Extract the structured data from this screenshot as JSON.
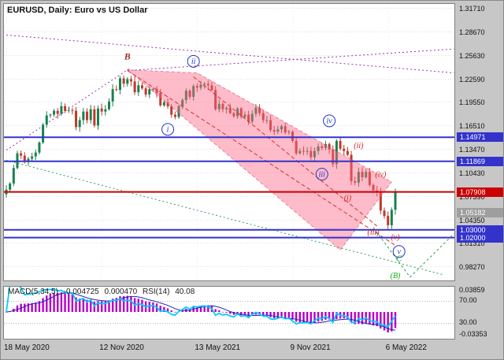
{
  "header": {
    "symbol_line": "EURUSD, Daily: Euro vs US Dollar"
  },
  "chart_data": {
    "type": "candlestick",
    "symbol": "EURUSD",
    "timeframe": "Daily",
    "description": "Euro vs US Dollar",
    "price_axis": {
      "max": 1.3222,
      "min": 0.9646,
      "ticks": [
        {
          "label": "1.31710",
          "value": 1.3171
        },
        {
          "label": "1.28670",
          "value": 1.2867
        },
        {
          "label": "1.25630",
          "value": 1.2563
        },
        {
          "label": "1.22590",
          "value": 1.2259
        },
        {
          "label": "1.19550",
          "value": 1.1955
        },
        {
          "label": "1.16510",
          "value": 1.1651
        },
        {
          "label": "1.13470",
          "value": 1.1347
        },
        {
          "label": "1.10430",
          "value": 1.1043
        },
        {
          "label": "1.07390",
          "value": 1.0739
        },
        {
          "label": "1.04350",
          "value": 1.0435
        },
        {
          "label": "1.01310",
          "value": 1.0131
        },
        {
          "label": "0.98270",
          "value": 0.9827
        }
      ]
    },
    "time_axis": {
      "labels": [
        "18 May 2020",
        "12 Nov 2020",
        "13 May 2021",
        "9 Nov 2021",
        "6 May 2022"
      ],
      "indices": [
        0,
        26,
        52,
        78,
        104
      ]
    },
    "candles": {
      "first_open": 1.076,
      "closes": [
        1.082,
        1.09,
        1.11,
        1.129,
        1.126,
        1.118,
        1.122,
        1.125,
        1.13,
        1.143,
        1.166,
        1.178,
        1.179,
        1.184,
        1.18,
        1.19,
        1.184,
        1.185,
        1.184,
        1.163,
        1.172,
        1.183,
        1.172,
        1.186,
        1.165,
        1.187,
        1.183,
        1.186,
        1.196,
        1.212,
        1.211,
        1.226,
        1.219,
        1.225,
        1.222,
        1.208,
        1.217,
        1.213,
        1.205,
        1.212,
        1.212,
        1.207,
        1.191,
        1.195,
        1.19,
        1.179,
        1.176,
        1.19,
        1.198,
        1.21,
        1.202,
        1.216,
        1.214,
        1.218,
        1.219,
        1.217,
        1.211,
        1.186,
        1.193,
        1.186,
        1.188,
        1.181,
        1.177,
        1.187,
        1.176,
        1.179,
        1.17,
        1.18,
        1.188,
        1.181,
        1.172,
        1.172,
        1.159,
        1.157,
        1.16,
        1.164,
        1.156,
        1.157,
        1.145,
        1.129,
        1.132,
        1.131,
        1.132,
        1.124,
        1.132,
        1.138,
        1.136,
        1.141,
        1.134,
        1.115,
        1.145,
        1.135,
        1.132,
        1.127,
        1.093,
        1.091,
        1.105,
        1.098,
        1.105,
        1.088,
        1.081,
        1.079,
        1.055,
        1.048,
        1.036,
        1.056,
        1.079
      ]
    },
    "levels": [
      {
        "value": 1.14971,
        "label": "1.14971",
        "color": "#3333cc",
        "line": true,
        "badge": "#3333cc"
      },
      {
        "value": 1.11869,
        "label": "1.11869",
        "color": "#3333cc",
        "line": true,
        "badge": "#3333cc"
      },
      {
        "value": 1.07908,
        "label": "1.07908",
        "color": "#cc0000",
        "line": true,
        "badge": "#cc0000"
      },
      {
        "value": 1.05182,
        "label": "1.05182",
        "color": "#9e9e9e",
        "line": false,
        "badge": "#9e9e9e"
      },
      {
        "value": 1.03,
        "label": "1.03000",
        "color": "#3333cc",
        "line": true,
        "badge": "#3333cc"
      },
      {
        "value": 1.02,
        "label": "1.02000",
        "color": "#3333cc",
        "line": true,
        "badge": "#3333cc"
      }
    ],
    "trendlines": [
      {
        "layer": "back",
        "color": "#9933aa",
        "dash": [
          2,
          3
        ],
        "pts": [
          [
            0,
            1.282
          ],
          [
            122,
            1.233
          ]
        ]
      },
      {
        "layer": "back",
        "color": "#9933aa",
        "dash": [
          2,
          3
        ],
        "pts": [
          [
            33,
            1.236
          ],
          [
            122,
            1.264
          ]
        ]
      },
      {
        "layer": "back",
        "color": "#9933aa",
        "dash": [
          2,
          3
        ],
        "pts": [
          [
            0,
            1.133
          ],
          [
            34,
            1.24
          ]
        ]
      },
      {
        "layer": "back",
        "color": "#2e9e5b",
        "dash": [
          2,
          3
        ],
        "pts": [
          [
            0,
            1.12
          ],
          [
            119,
            0.972
          ]
        ]
      },
      {
        "layer": "front",
        "color": "#d03333",
        "dash": [
          5,
          3
        ],
        "pts": [
          [
            33,
            1.236
          ],
          [
            106,
            1.01
          ]
        ]
      },
      {
        "layer": "front",
        "color": "#d03333",
        "dash": [
          5,
          3
        ],
        "pts": [
          [
            51,
            1.228
          ],
          [
            101,
            1.035
          ]
        ]
      },
      {
        "layer": "front",
        "color": "#2e9e5b",
        "dash": [
          3,
          3
        ],
        "pts": [
          [
            100,
            1.033
          ],
          [
            110,
            0.969
          ],
          [
            122,
            1.025
          ]
        ]
      }
    ],
    "channel": {
      "points": [
        [
          33,
          1.237
        ],
        [
          52,
          1.233
        ],
        [
          105,
          1.092
        ],
        [
          91,
          1.004
        ]
      ],
      "fill": "rgba(252,105,135,0.45)",
      "edge": "rgba(215,60,90,0.55)"
    },
    "wave_labels": [
      {
        "idx": 33,
        "price": 1.254,
        "text": "B",
        "color": "#993333",
        "circled": false,
        "size": 12,
        "bold": true
      },
      {
        "idx": 51,
        "price": 1.248,
        "text": "ii",
        "color": "#2233cc",
        "circled": true
      },
      {
        "idx": 44,
        "price": 1.16,
        "text": "i",
        "color": "#2233cc",
        "circled": true
      },
      {
        "idx": 86,
        "price": 1.102,
        "text": "iii",
        "color": "#2233cc",
        "circled": true
      },
      {
        "idx": 88,
        "price": 1.171,
        "text": "iv",
        "color": "#2233cc",
        "circled": true
      },
      {
        "idx": 107,
        "price": 1.002,
        "text": "v",
        "color": "#2233cc",
        "circled": true
      },
      {
        "idx": 93,
        "price": 1.071,
        "text": "(i)",
        "color": "#cc2222",
        "circled": false
      },
      {
        "idx": 96,
        "price": 1.139,
        "text": "(ii)",
        "color": "#cc2222",
        "circled": false
      },
      {
        "idx": 100,
        "price": 1.027,
        "text": "(iii)",
        "color": "#cc2222",
        "circled": false
      },
      {
        "idx": 102,
        "price": 1.102,
        "text": "(iv)",
        "color": "#cc2222",
        "circled": false
      },
      {
        "idx": 106,
        "price": 1.021,
        "text": "(v)",
        "color": "#cc2222",
        "circled": false
      },
      {
        "idx": 107,
        "price": 0.993,
        "text": "C",
        "color": "#11aa11",
        "circled": false,
        "size": 11
      },
      {
        "idx": 106,
        "price": 0.971,
        "text": "(B)",
        "color": "#11aa11",
        "circled": false
      }
    ],
    "colors": {
      "grid": "#e0e0e0",
      "vgrid": "#ededed",
      "up": "#1a8050",
      "down": "#c0392b"
    }
  },
  "indicator": {
    "label_macd": "MACD(5,34,5)",
    "macd_value": "-0.004725",
    "signal_value": "0.000470",
    "label_rsi": "RSI(14)",
    "rsi_value": "40.08",
    "axis": {
      "top": "0.03859",
      "r70": "70.00",
      "r30": "30.00",
      "bottom": "-0.03353"
    },
    "params": {
      "fast": 5,
      "slow": 34,
      "signal": 5,
      "rsi_period": 14
    },
    "hist_color": "#b400c8",
    "signal_color": "#2222bb",
    "rsi_color": "#00ccff",
    "grid_color": "#b5b5b5"
  }
}
